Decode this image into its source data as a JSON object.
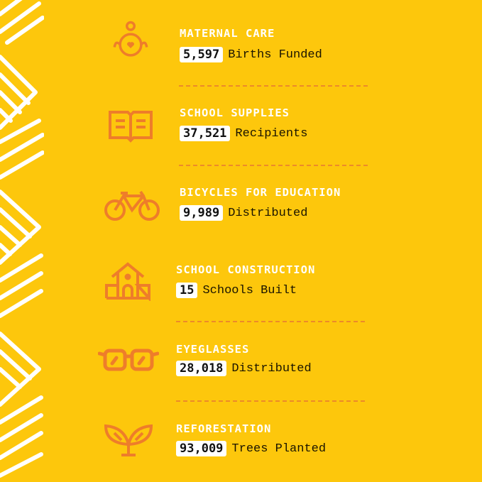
{
  "colors": {
    "background": "#fdc70c",
    "accent": "#ee7d2a",
    "title": "#ffffff"
  },
  "items": [
    {
      "title": "MATERNAL CARE",
      "value": "5,597",
      "label": "Births Funded",
      "icon": "baby-heart-icon"
    },
    {
      "title": "SCHOOL SUPPLIES",
      "value": "37,521",
      "label": "Recipients",
      "icon": "open-book-icon"
    },
    {
      "title": "BICYCLES FOR EDUCATION",
      "value": "9,989",
      "label": "Distributed",
      "icon": "bicycle-icon"
    },
    {
      "title": "SCHOOL CONSTRUCTION",
      "value": "15",
      "label": "Schools Built",
      "icon": "school-house-icon"
    },
    {
      "title": "EYEGLASSES",
      "value": "28,018",
      "label": "Distributed",
      "icon": "eyeglasses-icon"
    },
    {
      "title": "REFORESTATION",
      "value": "93,009",
      "label": "Trees Planted",
      "icon": "sprout-icon"
    }
  ]
}
